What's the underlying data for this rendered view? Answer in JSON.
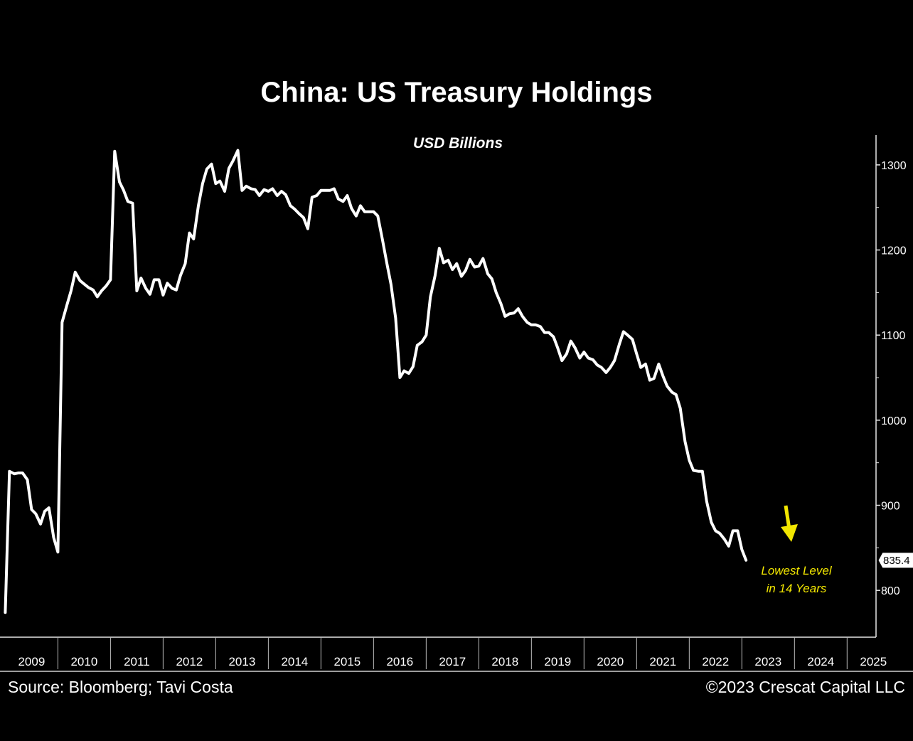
{
  "chart_data": {
    "type": "line",
    "title": "China: US Treasury Holdings",
    "subtitle": "USD Billions",
    "xlabel": "",
    "ylabel": "",
    "x_range": [
      2008.9,
      2025.55
    ],
    "ylim": [
      745,
      1335
    ],
    "y_ticks": [
      800,
      900,
      1000,
      1100,
      1200,
      1300
    ],
    "x_tick_labels": [
      "2009",
      "2010",
      "2011",
      "2012",
      "2013",
      "2014",
      "2015",
      "2016",
      "2017",
      "2018",
      "2019",
      "2020",
      "2021",
      "2022",
      "2023",
      "2024",
      "2025"
    ],
    "grid": false,
    "legend": "none",
    "line_color": "#ffffff",
    "series": [
      {
        "points": [
          [
            2009.0,
            774
          ],
          [
            2009.08,
            940
          ],
          [
            2009.17,
            937
          ],
          [
            2009.25,
            938
          ],
          [
            2009.33,
            938
          ],
          [
            2009.42,
            930
          ],
          [
            2009.5,
            895
          ],
          [
            2009.58,
            890
          ],
          [
            2009.67,
            878
          ],
          [
            2009.75,
            893
          ],
          [
            2009.83,
            897
          ],
          [
            2009.92,
            862
          ],
          [
            2010.0,
            845
          ],
          [
            2010.08,
            1115
          ],
          [
            2010.17,
            1135
          ],
          [
            2010.25,
            1152
          ],
          [
            2010.33,
            1174
          ],
          [
            2010.42,
            1164
          ],
          [
            2010.5,
            1160
          ],
          [
            2010.58,
            1156
          ],
          [
            2010.67,
            1153
          ],
          [
            2010.75,
            1145
          ],
          [
            2010.83,
            1152
          ],
          [
            2010.92,
            1158
          ],
          [
            2011.0,
            1165
          ],
          [
            2011.08,
            1316
          ],
          [
            2011.17,
            1280
          ],
          [
            2011.25,
            1270
          ],
          [
            2011.33,
            1257
          ],
          [
            2011.42,
            1255
          ],
          [
            2011.5,
            1152
          ],
          [
            2011.58,
            1167
          ],
          [
            2011.67,
            1155
          ],
          [
            2011.75,
            1148
          ],
          [
            2011.83,
            1165
          ],
          [
            2011.92,
            1165
          ],
          [
            2012.0,
            1147
          ],
          [
            2012.08,
            1161
          ],
          [
            2012.17,
            1155
          ],
          [
            2012.25,
            1153
          ],
          [
            2012.33,
            1170
          ],
          [
            2012.42,
            1184
          ],
          [
            2012.5,
            1220
          ],
          [
            2012.58,
            1213
          ],
          [
            2012.67,
            1252
          ],
          [
            2012.75,
            1278
          ],
          [
            2012.83,
            1295
          ],
          [
            2012.92,
            1301
          ],
          [
            2013.0,
            1278
          ],
          [
            2013.08,
            1281
          ],
          [
            2013.17,
            1269
          ],
          [
            2013.25,
            1296
          ],
          [
            2013.33,
            1305
          ],
          [
            2013.42,
            1317
          ],
          [
            2013.5,
            1270
          ],
          [
            2013.58,
            1275
          ],
          [
            2013.67,
            1272
          ],
          [
            2013.75,
            1271
          ],
          [
            2013.83,
            1264
          ],
          [
            2013.92,
            1271
          ],
          [
            2014.0,
            1269
          ],
          [
            2014.08,
            1272
          ],
          [
            2014.17,
            1264
          ],
          [
            2014.25,
            1269
          ],
          [
            2014.33,
            1265
          ],
          [
            2014.42,
            1252
          ],
          [
            2014.5,
            1248
          ],
          [
            2014.58,
            1243
          ],
          [
            2014.67,
            1238
          ],
          [
            2014.75,
            1225
          ],
          [
            2014.83,
            1262
          ],
          [
            2014.92,
            1264
          ],
          [
            2015.0,
            1270
          ],
          [
            2015.08,
            1270
          ],
          [
            2015.17,
            1270
          ],
          [
            2015.25,
            1272
          ],
          [
            2015.33,
            1260
          ],
          [
            2015.42,
            1257
          ],
          [
            2015.5,
            1264
          ],
          [
            2015.58,
            1249
          ],
          [
            2015.67,
            1240
          ],
          [
            2015.75,
            1252
          ],
          [
            2015.83,
            1245
          ],
          [
            2015.92,
            1245
          ],
          [
            2016.0,
            1245
          ],
          [
            2016.08,
            1240
          ],
          [
            2016.17,
            1212
          ],
          [
            2016.25,
            1185
          ],
          [
            2016.33,
            1160
          ],
          [
            2016.42,
            1120
          ],
          [
            2016.5,
            1050
          ],
          [
            2016.58,
            1058
          ],
          [
            2016.67,
            1055
          ],
          [
            2016.75,
            1063
          ],
          [
            2016.83,
            1088
          ],
          [
            2016.92,
            1092
          ],
          [
            2017.0,
            1100
          ],
          [
            2017.08,
            1145
          ],
          [
            2017.17,
            1170
          ],
          [
            2017.25,
            1202
          ],
          [
            2017.33,
            1185
          ],
          [
            2017.42,
            1188
          ],
          [
            2017.5,
            1177
          ],
          [
            2017.58,
            1184
          ],
          [
            2017.67,
            1169
          ],
          [
            2017.75,
            1176
          ],
          [
            2017.83,
            1189
          ],
          [
            2017.92,
            1180
          ],
          [
            2018.0,
            1181
          ],
          [
            2018.08,
            1190
          ],
          [
            2018.17,
            1172
          ],
          [
            2018.25,
            1166
          ],
          [
            2018.33,
            1150
          ],
          [
            2018.42,
            1137
          ],
          [
            2018.5,
            1122
          ],
          [
            2018.58,
            1125
          ],
          [
            2018.67,
            1126
          ],
          [
            2018.75,
            1131
          ],
          [
            2018.83,
            1122
          ],
          [
            2018.92,
            1115
          ],
          [
            2019.0,
            1112
          ],
          [
            2019.08,
            1112
          ],
          [
            2019.17,
            1110
          ],
          [
            2019.25,
            1103
          ],
          [
            2019.33,
            1103
          ],
          [
            2019.42,
            1098
          ],
          [
            2019.5,
            1085
          ],
          [
            2019.58,
            1070
          ],
          [
            2019.67,
            1078
          ],
          [
            2019.75,
            1093
          ],
          [
            2019.83,
            1085
          ],
          [
            2019.92,
            1073
          ],
          [
            2020.0,
            1080
          ],
          [
            2020.08,
            1073
          ],
          [
            2020.17,
            1071
          ],
          [
            2020.25,
            1065
          ],
          [
            2020.33,
            1062
          ],
          [
            2020.42,
            1056
          ],
          [
            2020.5,
            1062
          ],
          [
            2020.58,
            1070
          ],
          [
            2020.67,
            1089
          ],
          [
            2020.75,
            1104
          ],
          [
            2020.83,
            1100
          ],
          [
            2020.92,
            1095
          ],
          [
            2021.0,
            1078
          ],
          [
            2021.08,
            1062
          ],
          [
            2021.17,
            1066
          ],
          [
            2021.25,
            1047
          ],
          [
            2021.33,
            1049
          ],
          [
            2021.42,
            1066
          ],
          [
            2021.5,
            1052
          ],
          [
            2021.58,
            1040
          ],
          [
            2021.67,
            1033
          ],
          [
            2021.75,
            1030
          ],
          [
            2021.83,
            1014
          ],
          [
            2021.92,
            975
          ],
          [
            2022.0,
            953
          ],
          [
            2022.08,
            941
          ],
          [
            2022.17,
            940
          ],
          [
            2022.25,
            940
          ],
          [
            2022.33,
            905
          ],
          [
            2022.42,
            880
          ],
          [
            2022.5,
            870
          ],
          [
            2022.58,
            867
          ],
          [
            2022.67,
            860
          ],
          [
            2022.75,
            852
          ],
          [
            2022.83,
            870
          ],
          [
            2022.92,
            870
          ],
          [
            2023.0,
            848
          ],
          [
            2023.08,
            835.4
          ]
        ]
      }
    ],
    "last_value_label": "835.4",
    "annotation": [
      "Lowest Level",
      "in 14 Years"
    ],
    "annotation_color": "#f2e600"
  },
  "footer": {
    "source": "Source: Bloomberg; Tavi Costa",
    "copyright": "©2023 Crescat Capital LLC"
  }
}
